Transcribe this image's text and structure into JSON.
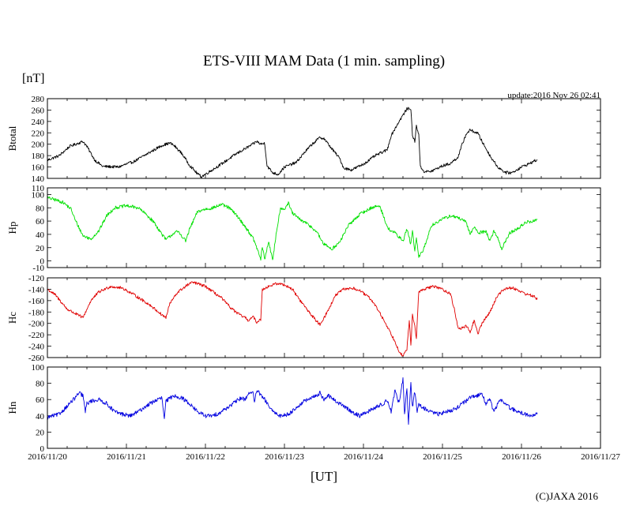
{
  "chart_data": {
    "type": "line",
    "title": "ETS-VIII MAM Data (1 min. sampling)",
    "unit_label": "[nT]",
    "update_text": "update:2016 Nov 26 02:41",
    "xlabel": "[UT]",
    "credit": "(C)JAXA 2016",
    "x_ticks": [
      "2016/11/20",
      "2016/11/21",
      "2016/11/22",
      "2016/11/23",
      "2016/11/24",
      "2016/11/25",
      "2016/11/26",
      "2016/11/27"
    ],
    "x_range_days": [
      0,
      7
    ],
    "panels": [
      {
        "name": "Btotal",
        "ylabel": "Btotal",
        "color": "#000000",
        "ylim": [
          140,
          280
        ],
        "yticks": [
          140,
          160,
          180,
          200,
          220,
          240,
          260,
          280
        ],
        "noise": 2.5,
        "points": [
          [
            0,
            172
          ],
          [
            0.15,
            180
          ],
          [
            0.28,
            196
          ],
          [
            0.45,
            205
          ],
          [
            0.5,
            196
          ],
          [
            0.6,
            172
          ],
          [
            0.7,
            161
          ],
          [
            0.9,
            160
          ],
          [
            1.1,
            170
          ],
          [
            1.35,
            190
          ],
          [
            1.45,
            198
          ],
          [
            1.55,
            202
          ],
          [
            1.6,
            198
          ],
          [
            1.7,
            184
          ],
          [
            1.8,
            163
          ],
          [
            1.9,
            148
          ],
          [
            1.95,
            143
          ],
          [
            2.2,
            165
          ],
          [
            2.4,
            184
          ],
          [
            2.6,
            200
          ],
          [
            2.65,
            205
          ],
          [
            2.7,
            200
          ],
          [
            2.75,
            202
          ],
          [
            2.78,
            162
          ],
          [
            2.85,
            150
          ],
          [
            2.92,
            147
          ],
          [
            3.0,
            160
          ],
          [
            3.15,
            168
          ],
          [
            3.25,
            185
          ],
          [
            3.35,
            200
          ],
          [
            3.45,
            212
          ],
          [
            3.5,
            210
          ],
          [
            3.6,
            192
          ],
          [
            3.7,
            175
          ],
          [
            3.75,
            158
          ],
          [
            3.85,
            155
          ],
          [
            4.0,
            165
          ],
          [
            4.15,
            180
          ],
          [
            4.3,
            190
          ],
          [
            4.35,
            215
          ],
          [
            4.45,
            240
          ],
          [
            4.55,
            262
          ],
          [
            4.6,
            263
          ],
          [
            4.62,
            215
          ],
          [
            4.65,
            205
          ],
          [
            4.67,
            232
          ],
          [
            4.7,
            218
          ],
          [
            4.72,
            160
          ],
          [
            4.77,
            152
          ],
          [
            4.85,
            152
          ],
          [
            5.0,
            162
          ],
          [
            5.1,
            166
          ],
          [
            5.2,
            178
          ],
          [
            5.25,
            200
          ],
          [
            5.3,
            218
          ],
          [
            5.35,
            225
          ],
          [
            5.45,
            219
          ],
          [
            5.5,
            205
          ],
          [
            5.6,
            180
          ],
          [
            5.7,
            160
          ],
          [
            5.8,
            150
          ],
          [
            5.88,
            150
          ],
          [
            6.0,
            160
          ],
          [
            6.1,
            166
          ],
          [
            6.2,
            173
          ]
        ]
      },
      {
        "name": "Hp",
        "ylabel": "Hp",
        "color": "#00e000",
        "ylim": [
          -10,
          110
        ],
        "yticks": [
          0,
          20,
          40,
          60,
          80,
          100
        ],
        "extra_ticks": [
          -10,
          110
        ],
        "noise": 2.5,
        "points": [
          [
            0,
            95
          ],
          [
            0.1,
            92
          ],
          [
            0.2,
            88
          ],
          [
            0.3,
            78
          ],
          [
            0.35,
            62
          ],
          [
            0.45,
            38
          ],
          [
            0.55,
            33
          ],
          [
            0.65,
            45
          ],
          [
            0.75,
            68
          ],
          [
            0.85,
            80
          ],
          [
            1.0,
            83
          ],
          [
            1.15,
            80
          ],
          [
            1.25,
            70
          ],
          [
            1.35,
            58
          ],
          [
            1.45,
            40
          ],
          [
            1.5,
            32
          ],
          [
            1.55,
            37
          ],
          [
            1.6,
            42
          ],
          [
            1.65,
            44
          ],
          [
            1.7,
            38
          ],
          [
            1.75,
            30
          ],
          [
            1.8,
            48
          ],
          [
            1.9,
            74
          ],
          [
            2.0,
            78
          ],
          [
            2.1,
            80
          ],
          [
            2.2,
            85
          ],
          [
            2.3,
            80
          ],
          [
            2.4,
            68
          ],
          [
            2.5,
            52
          ],
          [
            2.6,
            35
          ],
          [
            2.65,
            20
          ],
          [
            2.7,
            2
          ],
          [
            2.72,
            22
          ],
          [
            2.75,
            2
          ],
          [
            2.8,
            30
          ],
          [
            2.85,
            0
          ],
          [
            2.9,
            45
          ],
          [
            2.95,
            80
          ],
          [
            3.0,
            78
          ],
          [
            3.05,
            87
          ],
          [
            3.1,
            72
          ],
          [
            3.2,
            62
          ],
          [
            3.3,
            55
          ],
          [
            3.4,
            45
          ],
          [
            3.5,
            25
          ],
          [
            3.55,
            22
          ],
          [
            3.6,
            18
          ],
          [
            3.7,
            28
          ],
          [
            3.8,
            52
          ],
          [
            3.95,
            70
          ],
          [
            4.1,
            80
          ],
          [
            4.2,
            83
          ],
          [
            4.25,
            70
          ],
          [
            4.3,
            50
          ],
          [
            4.4,
            42
          ],
          [
            4.5,
            30
          ],
          [
            4.55,
            48
          ],
          [
            4.6,
            25
          ],
          [
            4.62,
            45
          ],
          [
            4.65,
            15
          ],
          [
            4.67,
            35
          ],
          [
            4.7,
            5
          ],
          [
            4.75,
            15
          ],
          [
            4.8,
            30
          ],
          [
            4.85,
            52
          ],
          [
            4.95,
            60
          ],
          [
            5.1,
            68
          ],
          [
            5.2,
            65
          ],
          [
            5.3,
            58
          ],
          [
            5.35,
            40
          ],
          [
            5.4,
            52
          ],
          [
            5.45,
            42
          ],
          [
            5.55,
            45
          ],
          [
            5.6,
            30
          ],
          [
            5.65,
            45
          ],
          [
            5.7,
            35
          ],
          [
            5.75,
            18
          ],
          [
            5.85,
            42
          ],
          [
            5.95,
            48
          ],
          [
            6.05,
            58
          ],
          [
            6.15,
            60
          ],
          [
            6.2,
            62
          ]
        ]
      },
      {
        "name": "Hc",
        "ylabel": "Hc",
        "color": "#e00000",
        "ylim": [
          -260,
          -120
        ],
        "yticks": [
          -260,
          -240,
          -220,
          -200,
          -180,
          -160,
          -140,
          -120
        ],
        "noise": 2.5,
        "points": [
          [
            0,
            -140
          ],
          [
            0.1,
            -150
          ],
          [
            0.25,
            -175
          ],
          [
            0.45,
            -190
          ],
          [
            0.55,
            -160
          ],
          [
            0.65,
            -145
          ],
          [
            0.8,
            -135
          ],
          [
            0.95,
            -138
          ],
          [
            1.1,
            -150
          ],
          [
            1.3,
            -168
          ],
          [
            1.45,
            -185
          ],
          [
            1.5,
            -190
          ],
          [
            1.55,
            -165
          ],
          [
            1.65,
            -145
          ],
          [
            1.8,
            -130
          ],
          [
            1.85,
            -128
          ],
          [
            2.0,
            -135
          ],
          [
            2.2,
            -155
          ],
          [
            2.3,
            -170
          ],
          [
            2.4,
            -182
          ],
          [
            2.5,
            -190
          ],
          [
            2.55,
            -195
          ],
          [
            2.6,
            -188
          ],
          [
            2.65,
            -198
          ],
          [
            2.7,
            -193
          ],
          [
            2.72,
            -140
          ],
          [
            2.8,
            -135
          ],
          [
            2.9,
            -130
          ],
          [
            3.0,
            -132
          ],
          [
            3.1,
            -140
          ],
          [
            3.2,
            -160
          ],
          [
            3.3,
            -178
          ],
          [
            3.4,
            -195
          ],
          [
            3.45,
            -202
          ],
          [
            3.55,
            -178
          ],
          [
            3.65,
            -150
          ],
          [
            3.75,
            -140
          ],
          [
            3.85,
            -138
          ],
          [
            3.95,
            -142
          ],
          [
            4.1,
            -158
          ],
          [
            4.2,
            -180
          ],
          [
            4.3,
            -205
          ],
          [
            4.4,
            -232
          ],
          [
            4.45,
            -248
          ],
          [
            4.5,
            -258
          ],
          [
            4.55,
            -245
          ],
          [
            4.58,
            -195
          ],
          [
            4.6,
            -240
          ],
          [
            4.62,
            -185
          ],
          [
            4.65,
            -205
          ],
          [
            4.67,
            -225
          ],
          [
            4.7,
            -145
          ],
          [
            4.8,
            -138
          ],
          [
            4.9,
            -135
          ],
          [
            5.0,
            -140
          ],
          [
            5.1,
            -148
          ],
          [
            5.15,
            -175
          ],
          [
            5.2,
            -210
          ],
          [
            5.3,
            -205
          ],
          [
            5.35,
            -215
          ],
          [
            5.4,
            -195
          ],
          [
            5.45,
            -218
          ],
          [
            5.5,
            -200
          ],
          [
            5.6,
            -180
          ],
          [
            5.7,
            -150
          ],
          [
            5.8,
            -138
          ],
          [
            5.9,
            -138
          ],
          [
            6.05,
            -148
          ],
          [
            6.15,
            -152
          ],
          [
            6.2,
            -158
          ]
        ]
      },
      {
        "name": "Hn",
        "ylabel": "Hn",
        "color": "#0000e0",
        "ylim": [
          0,
          100
        ],
        "yticks": [
          0,
          20,
          40,
          60,
          80,
          100
        ],
        "noise": 2.5,
        "points": [
          [
            0,
            38
          ],
          [
            0.15,
            42
          ],
          [
            0.25,
            52
          ],
          [
            0.35,
            62
          ],
          [
            0.4,
            68
          ],
          [
            0.45,
            65
          ],
          [
            0.48,
            45
          ],
          [
            0.5,
            55
          ],
          [
            0.55,
            58
          ],
          [
            0.65,
            60
          ],
          [
            0.75,
            55
          ],
          [
            0.85,
            45
          ],
          [
            0.95,
            42
          ],
          [
            1.05,
            40
          ],
          [
            1.15,
            45
          ],
          [
            1.25,
            52
          ],
          [
            1.35,
            58
          ],
          [
            1.45,
            62
          ],
          [
            1.48,
            35
          ],
          [
            1.5,
            58
          ],
          [
            1.6,
            65
          ],
          [
            1.7,
            62
          ],
          [
            1.8,
            55
          ],
          [
            1.9,
            45
          ],
          [
            2.0,
            40
          ],
          [
            2.1,
            40
          ],
          [
            2.2,
            45
          ],
          [
            2.35,
            55
          ],
          [
            2.45,
            62
          ],
          [
            2.5,
            60
          ],
          [
            2.55,
            68
          ],
          [
            2.6,
            70
          ],
          [
            2.62,
            55
          ],
          [
            2.65,
            72
          ],
          [
            2.7,
            65
          ],
          [
            2.75,
            60
          ],
          [
            2.85,
            45
          ],
          [
            2.95,
            40
          ],
          [
            3.05,
            42
          ],
          [
            3.15,
            50
          ],
          [
            3.25,
            58
          ],
          [
            3.35,
            62
          ],
          [
            3.45,
            68
          ],
          [
            3.5,
            60
          ],
          [
            3.55,
            65
          ],
          [
            3.65,
            58
          ],
          [
            3.75,
            52
          ],
          [
            3.85,
            45
          ],
          [
            3.95,
            40
          ],
          [
            4.05,
            45
          ],
          [
            4.15,
            50
          ],
          [
            4.25,
            55
          ],
          [
            4.3,
            60
          ],
          [
            4.35,
            45
          ],
          [
            4.4,
            72
          ],
          [
            4.45,
            55
          ],
          [
            4.5,
            85
          ],
          [
            4.52,
            40
          ],
          [
            4.55,
            75
          ],
          [
            4.57,
            30
          ],
          [
            4.6,
            80
          ],
          [
            4.62,
            50
          ],
          [
            4.65,
            70
          ],
          [
            4.68,
            45
          ],
          [
            4.7,
            55
          ],
          [
            4.75,
            50
          ],
          [
            4.85,
            45
          ],
          [
            4.95,
            42
          ],
          [
            5.05,
            45
          ],
          [
            5.15,
            48
          ],
          [
            5.25,
            55
          ],
          [
            5.35,
            62
          ],
          [
            5.45,
            65
          ],
          [
            5.5,
            68
          ],
          [
            5.55,
            55
          ],
          [
            5.6,
            60
          ],
          [
            5.65,
            45
          ],
          [
            5.7,
            55
          ],
          [
            5.75,
            60
          ],
          [
            5.85,
            50
          ],
          [
            5.95,
            45
          ],
          [
            6.05,
            42
          ],
          [
            6.15,
            40
          ],
          [
            6.2,
            44
          ]
        ]
      }
    ]
  }
}
